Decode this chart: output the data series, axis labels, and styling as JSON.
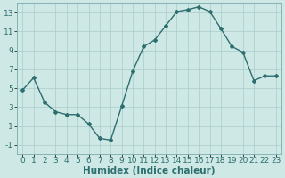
{
  "x": [
    0,
    1,
    2,
    3,
    4,
    5,
    6,
    7,
    8,
    9,
    10,
    11,
    12,
    13,
    14,
    15,
    16,
    17,
    18,
    19,
    20,
    21,
    22,
    23
  ],
  "y": [
    4.8,
    6.1,
    3.5,
    2.5,
    2.2,
    2.2,
    1.2,
    -0.3,
    -0.5,
    3.1,
    6.8,
    9.4,
    10.1,
    11.6,
    13.1,
    13.3,
    13.6,
    13.1,
    11.3,
    9.4,
    8.8,
    5.8,
    6.3,
    6.3
  ],
  "line_color": "#2d6e6e",
  "marker": "D",
  "marker_size": 2.0,
  "bg_color": "#cee8e6",
  "grid_color": "#aacccc",
  "xlabel": "Humidex (Indice chaleur)",
  "ylim": [
    -2,
    14
  ],
  "xlim": [
    -0.5,
    23.5
  ],
  "yticks": [
    -1,
    1,
    3,
    5,
    7,
    9,
    11,
    13
  ],
  "xticks": [
    0,
    1,
    2,
    3,
    4,
    5,
    6,
    7,
    8,
    9,
    10,
    11,
    12,
    13,
    14,
    15,
    16,
    17,
    18,
    19,
    20,
    21,
    22,
    23
  ],
  "xlabel_fontsize": 7.5,
  "tick_fontsize": 6.5,
  "line_width": 1.0,
  "fig_width": 3.2,
  "fig_height": 2.0,
  "dpi": 100
}
